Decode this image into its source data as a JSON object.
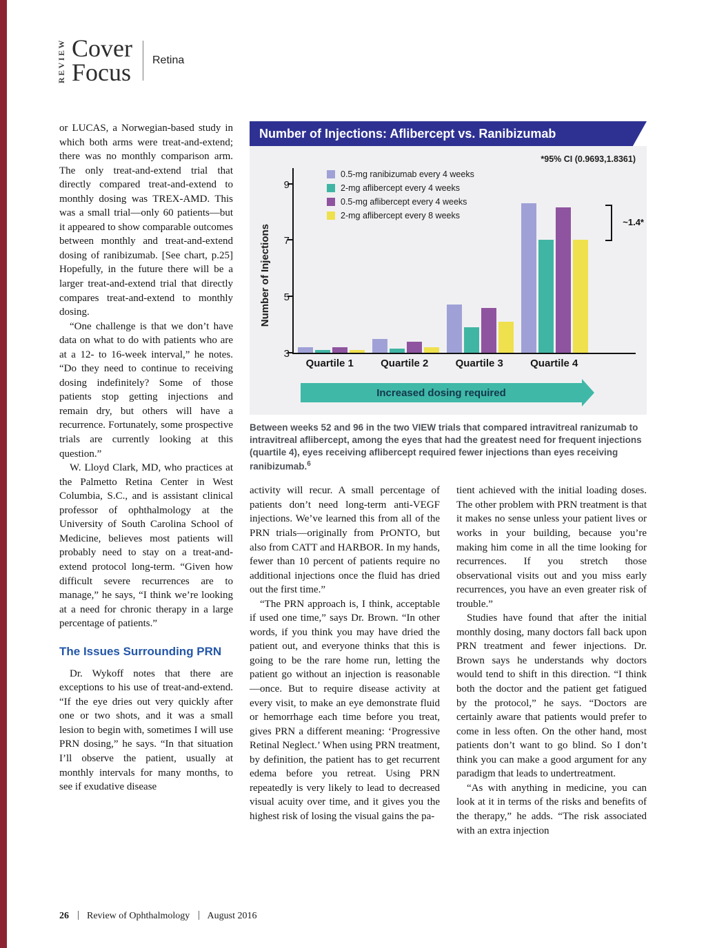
{
  "page": {
    "masthead_vertical": "REVIEW",
    "masthead_line1": "Cover",
    "masthead_line2": "Focus",
    "section": "Retina"
  },
  "footer": {
    "page_number": "26",
    "publication": "Review of Ophthalmology",
    "issue": "August 2016"
  },
  "chart": {
    "title": "Number of Injections: Aflibercept vs. Ranibizumab",
    "ci_note": "*95% CI (0.9693,1.8361)",
    "diff_label": "~1.4*",
    "arrow_label": "Increased dosing required",
    "caption": "Between weeks 52 and 96 in the two VIEW trials that compared intravitreal ranizumab to intravitreal aflibercept, among the eyes that had the greatest need for frequent injections (quartile 4), eyes receiving aflibercept required fewer injections than eyes receiving ranibizumab.",
    "caption_ref": "6"
  },
  "chart_data": {
    "type": "bar",
    "title": "Number of Injections: Aflibercept vs. Ranibizumab",
    "categories": [
      "Quartile 1",
      "Quartile 2",
      "Quartile 3",
      "Quartile 4"
    ],
    "series": [
      {
        "name": "0.5-mg ranibizumab every 4 weeks",
        "color": "#9fa1d6",
        "values": [
          3.2,
          3.5,
          4.7,
          8.3
        ]
      },
      {
        "name": "2-mg aflibercept every 4 weeks",
        "color": "#41b5a4",
        "values": [
          3.1,
          3.15,
          3.9,
          7.0
        ]
      },
      {
        "name": "0.5-mg aflibercept every 4 weeks",
        "color": "#8f549f",
        "values": [
          3.2,
          3.4,
          4.6,
          8.15
        ]
      },
      {
        "name": "2-mg aflibercept every 8 weeks",
        "color": "#efe04e",
        "values": [
          3.1,
          3.2,
          4.1,
          7.0
        ]
      }
    ],
    "xlabel": "",
    "ylabel": "Number of Injections",
    "yticks": [
      3,
      5,
      7,
      9
    ],
    "ylim": [
      3,
      9.6
    ],
    "grid": false,
    "legend_position": "top-left",
    "annotations": [
      "*95% CI (0.9693,1.8361)",
      "~1.4*",
      "Increased dosing required"
    ]
  },
  "article": {
    "col_left": {
      "paras": [
        "or LUCAS, a Norwegian-based study in which both arms were treat-and-extend; there was no monthly comparison arm. The only treat-and-extend trial that directly compared treat-and-extend to monthly dosing was TREX-AMD. This was a small trial—only 60 patients—but it appeared to show comparable outcomes between monthly and treat-and-extend dosing of ranibizumab. [See chart, p.25] Hopefully, in the future there will be a larger treat-and-extend trial that directly compares treat-and-extend to monthly dosing.",
        "“One challenge is that we don’t have data on what to do with patients who are at a 12- to 16-week interval,” he notes. “Do they need to continue to receiving dosing indefinitely? Some of those patients stop getting injections and remain dry, but others will have a recurrence. Fortunately, some prospective trials are currently looking at this question.”",
        "W. Lloyd Clark, MD, who practices at the Palmetto Retina Center in West Columbia, S.C., and is assistant clinical professor of ophthalmology at the University of South Carolina School of Medicine, believes most patients will probably need to stay on a treat-and-extend protocol long-term. “Given how difficult severe recurrences are to manage,” he says, “I think we’re looking at a need for chronic therapy in a large percentage of patients.”"
      ],
      "heading": "The Issues Surrounding PRN",
      "paras_after": [
        "Dr. Wykoff notes that there are exceptions to his use of treat-and-extend. “If the eye dries out very quickly after one or two shots, and it was a small lesion to begin with, sometimes I will use PRN dosing,” he says. “In that situation I’ll observe the patient, usually at monthly intervals for many months, to see if exudative disease"
      ]
    },
    "col_mid": {
      "paras": [
        "activity will recur. A small percentage of patients don’t need long-term anti-VEGF injections. We’ve learned this from all of the PRN trials—originally from PrONTO, but also from CATT and HARBOR. In my hands, fewer than 10 percent of patients require no additional injections once the fluid has dried out the first time.”",
        "“The PRN approach is, I think, acceptable if used one time,” says Dr. Brown. “In other words, if you think you may have dried the patient out, and everyone thinks that this is going to be the rare home run, letting the patient go without an injection is reasonable—once. But to require disease activity at every visit, to make an eye demonstrate fluid or hemorrhage each time before you treat, gives PRN a different meaning: ‘Progressive Retinal Neglect.’ When using PRN treatment, by definition, the patient has to get recurrent edema before you retreat. Using PRN repeatedly is very likely to lead to decreased visual acuity over time, and it gives you the highest risk of losing the visual gains the pa-"
      ]
    },
    "col_right": {
      "paras": [
        "tient achieved with the initial loading doses. The other problem with PRN treatment is that it makes no sense unless your patient lives or works in your building, because you’re making him come in all the time looking for recurrences. If you stretch those observational visits out and you miss early recurrences, you have an even greater risk of trouble.”",
        "Studies have found that after the initial monthly dosing, many doctors fall back upon PRN treatment and fewer injections. Dr. Brown says he understands why doctors would tend to shift in this direction. “I think both the doctor and the patient get fatigued by the protocol,” he says. “Doctors are certainly aware that patients would prefer to come in less often. On the other hand, most patients don’t want to go blind. So I don’t think you can make a good argument for any paradigm that leads to undertreatment.",
        "“As with anything in medicine, you can look at it in terms of the risks and benefits of the therapy,” he adds. “The risk associated with an extra injection"
      ]
    }
  }
}
